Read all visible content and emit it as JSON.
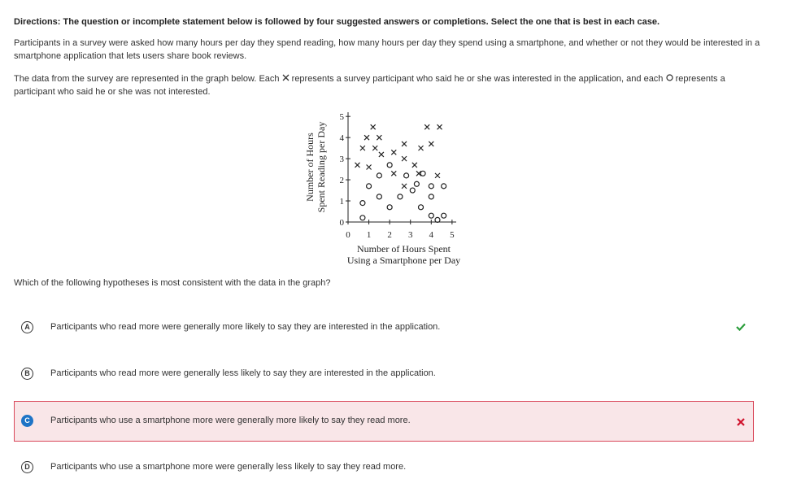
{
  "directions": "Directions: The question or incomplete statement below is followed by four suggested answers or completions. Select the one that is best in each case.",
  "passage": "Participants in a survey were asked how many hours per day they spend reading, how many hours per day they spend using a smartphone, and whether or not they would be interested in a smartphone application that lets users share book reviews.",
  "data_text": [
    "The data from the survey are represented in the graph below. Each",
    "represents a survey participant who said he or she was interested in the  application, and each",
    "represents a participant who said he or she was not interested."
  ],
  "graph": {
    "type": "scatter",
    "x_label": [
      "Number of Hours Spent",
      "Using a Smartphone per Day"
    ],
    "y_label": [
      "Number of Hours",
      "Spent Reading per Day"
    ],
    "xlim": [
      0,
      5.2
    ],
    "ylim": [
      0,
      5.2
    ],
    "xticks": [
      0,
      1,
      2,
      3,
      4,
      5
    ],
    "yticks": [
      0,
      1,
      2,
      3,
      4,
      5
    ],
    "color": "#222",
    "series": [
      {
        "marker": "x",
        "x": [
          1.2,
          0.9,
          1.5,
          0.7,
          1.3,
          0.45,
          1.6,
          2.2,
          2.7,
          2.7,
          3.2,
          3.5,
          4.0,
          3.8,
          4.4,
          3.4,
          4.3,
          2.7,
          2.2,
          1.0
        ],
        "y": [
          4.5,
          4.0,
          4.0,
          3.5,
          3.5,
          2.7,
          3.2,
          3.3,
          3.7,
          3.0,
          2.7,
          3.5,
          3.7,
          4.5,
          4.5,
          2.3,
          2.2,
          1.7,
          2.3,
          2.6
        ]
      },
      {
        "marker": "o",
        "x": [
          0.7,
          0.7,
          1.0,
          1.5,
          1.5,
          2.0,
          2.0,
          2.8,
          2.5,
          3.1,
          3.3,
          3.6,
          3.5,
          4.0,
          4.0,
          4.6,
          4.0,
          4.3,
          4.6
        ],
        "y": [
          0.2,
          0.9,
          1.7,
          2.2,
          1.2,
          2.7,
          0.7,
          2.2,
          1.2,
          1.5,
          1.8,
          2.3,
          0.7,
          1.7,
          1.2,
          1.7,
          0.3,
          0.1,
          0.3
        ]
      }
    ]
  },
  "question": "Which of the following hypotheses is most consistent with the data in the graph?",
  "options": [
    {
      "letter": "A",
      "text": "Participants who read more were generally more likely to say they are interested in the application."
    },
    {
      "letter": "B",
      "text": "Participants who read more were generally less likely to say they are interested in the application."
    },
    {
      "letter": "C",
      "text": "Participants who use a smartphone more were generally more likely to say they read more."
    },
    {
      "letter": "D",
      "text": "Participants who use a smartphone more were generally less likely to say they read more."
    }
  ]
}
